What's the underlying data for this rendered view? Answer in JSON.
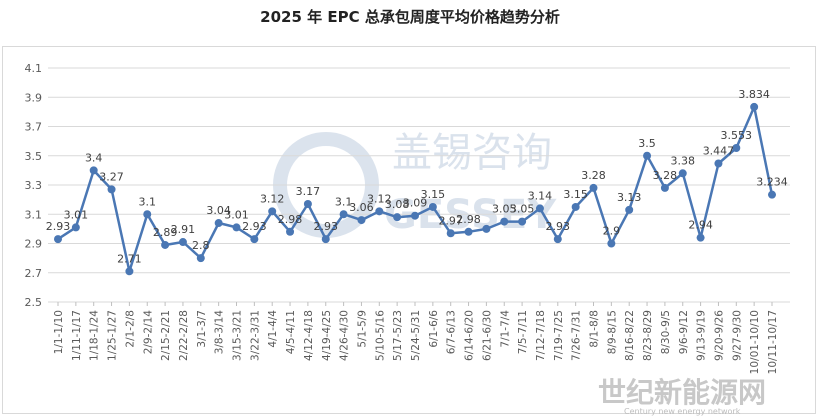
{
  "chart_data": {
    "type": "line",
    "title": "2025 年 EPC 总承包周度平均价格趋势分析",
    "xlabel": "",
    "ylabel": "",
    "ylim": [
      2.5,
      4.1
    ],
    "yticks": [
      "2.5",
      "2.7",
      "2.9",
      "3.1",
      "3.3",
      "3.5",
      "3.7",
      "3.9",
      "4.1"
    ],
    "grid": true,
    "legend": "none",
    "line_color": "#4a77b4",
    "categories": [
      "1/1-1/10",
      "1/11-1/17",
      "1/18-1/24",
      "1/25-1/27",
      "2/1-2/8",
      "2/9-2/14",
      "2/15-2/21",
      "2/22-2/28",
      "3/1-3/7",
      "3/8-3/14",
      "3/15-3/21",
      "3/22-3/31",
      "4/1-4/4",
      "4/5-4/11",
      "4/12-4/18",
      "4/19-4/25",
      "4/26-4/30",
      "5/1-5/9",
      "5/10-5/16",
      "5/17-5/23",
      "5/24-5/31",
      "6/1-6/6",
      "6/7-6/13",
      "6/14-6/20",
      "6/21-6/30",
      "7/1-7/4",
      "7/5-7/11",
      "7/12-7/18",
      "7/19-7/25",
      "7/26-7/31",
      "8/1-8/8",
      "8/9-8/15",
      "8/16-8/22",
      "8/23-8/29",
      "8/30-9/5",
      "9/6-9/12",
      "9/13-9/19",
      "9/20-9/26",
      "9/27-9/30",
      "10/01-10/10",
      "10/11-10/17"
    ],
    "values": [
      2.93,
      3.01,
      3.4,
      3.27,
      2.71,
      3.1,
      2.89,
      2.91,
      2.8,
      3.04,
      3.01,
      2.93,
      3.12,
      2.98,
      3.17,
      2.93,
      3.1,
      3.06,
      3.12,
      3.08,
      3.09,
      3.15,
      2.97,
      2.98,
      3.0,
      3.05,
      3.05,
      3.14,
      2.93,
      3.15,
      3.28,
      2.9,
      3.13,
      3.5,
      3.28,
      3.38,
      2.94,
      3.447,
      3.553,
      3.834,
      3.234
    ],
    "data_labels": [
      "2.93",
      "3.01",
      "3.4",
      "3.27",
      "2.71",
      "3.1",
      "2.89",
      "2.91",
      "2.8",
      "3.04",
      "3.01",
      "2.93",
      "3.12",
      "2.98",
      "3.17",
      "2.93",
      "3.1",
      "3.06",
      "3.12",
      "3.08",
      "3.09",
      "3.15",
      "2.97",
      "2.98",
      "",
      "3.05",
      "3.05",
      "3.14",
      "2.93",
      "3.15",
      "3.28",
      "2.9",
      "3.13",
      "3.5",
      "3.28",
      "3.38",
      "2.94",
      "3.447",
      "3.553",
      "3.834",
      "3.234"
    ]
  },
  "watermarks": {
    "center_logo_text": "盖锡咨询",
    "center_logo_latin": "GESSEY",
    "corner_logo_text": "世纪新能源网",
    "corner_logo_sub": "Century new energy network"
  }
}
